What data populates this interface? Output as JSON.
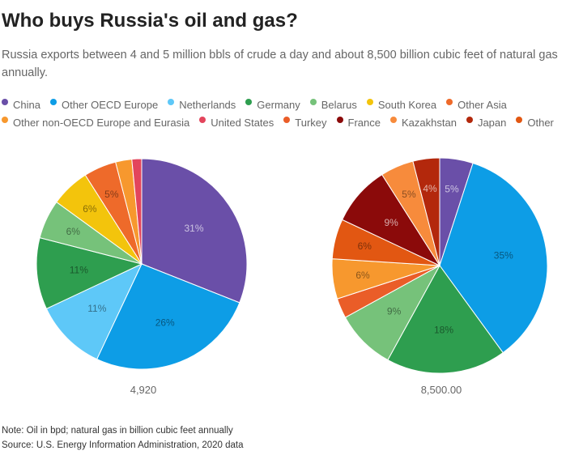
{
  "title": "Who buys Russia's oil and gas?",
  "subtitle": "Russia exports between 4 and 5 million bbls of crude a day and about 8,500 billion cubic feet of natural gas annually.",
  "legend": [
    {
      "name": "China",
      "color": "#6a4fa8"
    },
    {
      "name": "Other OECD Europe",
      "color": "#0d9de6"
    },
    {
      "name": "Netherlands",
      "color": "#5ec8f8"
    },
    {
      "name": "Germany",
      "color": "#2e9e4f"
    },
    {
      "name": "Belarus",
      "color": "#76c27a"
    },
    {
      "name": "South Korea",
      "color": "#f3c40c"
    },
    {
      "name": "Other Asia",
      "color": "#ee6a2a"
    },
    {
      "name": "Other non-OECD Europe and Eurasia",
      "color": "#f7982e"
    },
    {
      "name": "United States",
      "color": "#e3455c"
    },
    {
      "name": "Turkey",
      "color": "#ea5d28"
    },
    {
      "name": "France",
      "color": "#8b0a0a"
    },
    {
      "name": "Kazakhstan",
      "color": "#f78b3c"
    },
    {
      "name": "Japan",
      "color": "#b3280c"
    },
    {
      "name": "Other",
      "color": "#e25712"
    }
  ],
  "chart_data": [
    {
      "type": "pie",
      "total_label": "4,920",
      "slices": [
        {
          "name": "China",
          "value": 31,
          "label": "31%"
        },
        {
          "name": "Other OECD Europe",
          "value": 26,
          "label": "26%"
        },
        {
          "name": "Netherlands",
          "value": 11,
          "label": "11%"
        },
        {
          "name": "Germany",
          "value": 11,
          "label": "11%"
        },
        {
          "name": "Belarus",
          "value": 6,
          "label": "6%"
        },
        {
          "name": "South Korea",
          "value": 6,
          "label": "6%"
        },
        {
          "name": "Other Asia",
          "value": 5,
          "label": "5%"
        },
        {
          "name": "Other non-OECD Europe and Eurasia",
          "value": 2.5,
          "label": ""
        },
        {
          "name": "United States",
          "value": 1.5,
          "label": ""
        }
      ]
    },
    {
      "type": "pie",
      "total_label": "8,500.00",
      "slices": [
        {
          "name": "China",
          "value": 5,
          "label": "5%"
        },
        {
          "name": "Other OECD Europe",
          "value": 35,
          "label": "35%"
        },
        {
          "name": "Germany",
          "value": 18,
          "label": "18%"
        },
        {
          "name": "Belarus",
          "value": 9,
          "label": "9%"
        },
        {
          "name": "Turkey",
          "value": 3,
          "label": ""
        },
        {
          "name": "Other non-OECD Europe and Eurasia",
          "value": 6,
          "label": "6%"
        },
        {
          "name": "Other",
          "value": 6,
          "label": "6%"
        },
        {
          "name": "France",
          "value": 9,
          "label": "9%"
        },
        {
          "name": "Kazakhstan",
          "value": 5,
          "label": "5%"
        },
        {
          "name": "Japan",
          "value": 4,
          "label": "4%"
        }
      ]
    }
  ],
  "note": "Note: Oil in bpd; natural gas in billion cubic feet annually",
  "source": "Source: U.S. Energy Information Administration, 2020 data"
}
